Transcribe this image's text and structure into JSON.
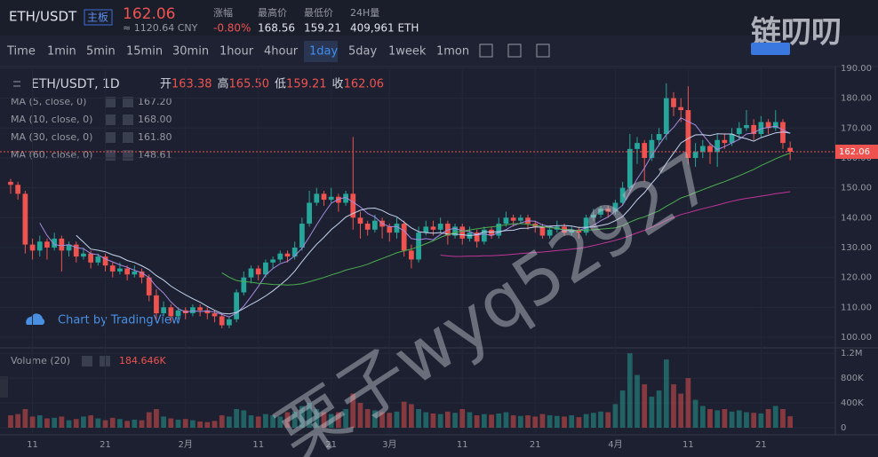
{
  "header": {
    "symbol": "ETH/USDT",
    "badge": "主板",
    "price": "162.06",
    "cny": "≈ 1120.64 CNY",
    "stats": [
      {
        "label": "涨幅",
        "value": "-0.80%"
      },
      {
        "label": "最高价",
        "value": "168.56"
      },
      {
        "label": "最低价",
        "value": "159.21"
      },
      {
        "label": "24H量",
        "value": "409,961 ETH"
      }
    ]
  },
  "logo": "链叨叨",
  "toolbar": [
    "Time",
    "1min",
    "5min",
    "15min",
    "30min",
    "1hour",
    "4hour",
    "1day",
    "5day",
    "1week",
    "1mon"
  ],
  "legend": {
    "title": "ETH/USDT, 1D",
    "ohlc": [
      {
        "label": "开",
        "value": "163.38"
      },
      {
        "label": "高",
        "value": "165.50"
      },
      {
        "label": "低",
        "value": "159.21"
      },
      {
        "label": "收",
        "value": "162.06"
      }
    ],
    "indicators": [
      {
        "name": "MA (5, close, 0)",
        "value": "167.20",
        "color": "#a58be0",
        "period": 5
      },
      {
        "name": "MA (10, close, 0)",
        "value": "168.00",
        "color": "#c6d4f0",
        "period": 10
      },
      {
        "name": "MA (30, close, 0)",
        "value": "161.80",
        "color": "#4caf50",
        "period": 30
      },
      {
        "name": "MA (60, close, 0)",
        "value": "148.61",
        "color": "#c2359a",
        "period": 60
      }
    ],
    "volume": "Volume (20)",
    "volume_value": "184.646K"
  },
  "branding": "Chart by TradingView",
  "watermark": "栗子wyq52927",
  "chart_data": {
    "type": "candlestick",
    "up_color": "#26a69a",
    "down_color": "#ef5350",
    "xlim": [
      -1.46,
      113.2
    ],
    "xticks": [
      {
        "value": 3,
        "label": "11"
      },
      {
        "value": 13,
        "label": "21"
      },
      {
        "value": 24,
        "label": "2月"
      },
      {
        "value": 34,
        "label": "11"
      },
      {
        "value": 44,
        "label": "21"
      },
      {
        "value": 52,
        "label": "3月"
      },
      {
        "value": 62,
        "label": "11"
      },
      {
        "value": 72,
        "label": "21"
      },
      {
        "value": 83,
        "label": "4月"
      },
      {
        "value": 93,
        "label": "11"
      },
      {
        "value": 103,
        "label": "21"
      }
    ],
    "ylim": [
      97.03,
      190.58
    ],
    "yticks": [
      {
        "value": 100,
        "label": "100.00"
      },
      {
        "value": 110,
        "label": "110.00"
      },
      {
        "value": 120,
        "label": "120.00"
      },
      {
        "value": 130,
        "label": "130.00"
      },
      {
        "value": 140,
        "label": "140.00"
      },
      {
        "value": 150,
        "label": "150.00"
      },
      {
        "value": 160,
        "label": "160.00"
      },
      {
        "value": 170,
        "label": "170.00"
      },
      {
        "value": 180,
        "label": "180.00"
      },
      {
        "value": 190,
        "label": "190.00"
      }
    ],
    "y2lim": [
      0,
      1230000
    ],
    "y2ticks": [
      0,
      {
        "value": 400000,
        "label": "400K"
      },
      {
        "value": 800000,
        "label": "800K"
      },
      {
        "value": 1200000,
        "label": "1.2M"
      }
    ],
    "candles": [
      [
        152,
        153,
        148,
        151
      ],
      [
        151,
        152,
        146,
        148
      ],
      [
        148,
        149,
        128,
        131
      ],
      [
        131,
        133,
        126,
        129
      ],
      [
        129,
        134,
        127,
        132
      ],
      [
        132,
        133,
        126,
        130
      ],
      [
        130,
        135,
        129,
        133
      ],
      [
        133,
        134,
        122,
        129
      ],
      [
        129,
        132,
        127,
        131
      ],
      [
        131,
        132,
        125,
        127
      ],
      [
        127,
        130,
        126,
        128
      ],
      [
        128,
        129,
        123,
        125
      ],
      [
        125,
        128,
        124,
        127
      ],
      [
        127,
        128,
        122,
        124
      ],
      [
        124,
        125,
        120,
        122
      ],
      [
        122,
        125,
        121,
        123
      ],
      [
        123,
        124,
        119,
        121
      ],
      [
        121,
        124,
        120,
        122
      ],
      [
        122,
        123,
        118,
        120
      ],
      [
        120,
        121,
        112,
        114
      ],
      [
        114,
        116,
        106,
        108
      ],
      [
        108,
        112,
        107,
        110
      ],
      [
        110,
        111,
        105,
        107
      ],
      [
        107,
        110,
        106,
        109
      ],
      [
        109,
        110,
        106,
        108
      ],
      [
        108,
        111,
        107,
        110
      ],
      [
        110,
        111,
        107,
        109
      ],
      [
        109,
        110,
        106,
        108
      ],
      [
        108,
        109,
        105,
        107
      ],
      [
        107,
        108,
        103,
        104
      ],
      [
        104,
        107,
        103,
        106
      ],
      [
        106,
        116,
        105,
        115
      ],
      [
        115,
        122,
        114,
        120
      ],
      [
        120,
        124,
        118,
        123
      ],
      [
        123,
        124,
        119,
        121
      ],
      [
        121,
        126,
        120,
        125
      ],
      [
        125,
        127,
        123,
        126
      ],
      [
        126,
        129,
        125,
        128
      ],
      [
        128,
        129,
        125,
        127
      ],
      [
        127,
        132,
        126,
        130
      ],
      [
        130,
        140,
        129,
        138
      ],
      [
        138,
        149,
        137,
        145
      ],
      [
        145,
        150,
        144,
        148
      ],
      [
        148,
        149,
        144,
        146
      ],
      [
        146,
        150,
        145,
        147
      ],
      [
        147,
        148,
        142,
        145
      ],
      [
        145,
        149,
        144,
        148
      ],
      [
        148,
        167,
        136,
        140
      ],
      [
        140,
        142,
        133,
        138
      ],
      [
        138,
        139,
        134,
        136
      ],
      [
        136,
        141,
        135,
        139
      ],
      [
        139,
        140,
        133,
        137
      ],
      [
        137,
        138,
        132,
        135
      ],
      [
        135,
        140,
        133,
        138
      ],
      [
        138,
        139,
        127,
        129
      ],
      [
        129,
        131,
        123,
        126
      ],
      [
        126,
        137,
        125,
        135
      ],
      [
        135,
        139,
        134,
        137
      ],
      [
        137,
        139,
        134,
        136
      ],
      [
        136,
        140,
        135,
        138
      ],
      [
        138,
        139,
        131,
        134
      ],
      [
        134,
        138,
        133,
        137
      ],
      [
        137,
        138,
        131,
        133
      ],
      [
        133,
        137,
        132,
        135
      ],
      [
        135,
        136,
        130,
        132
      ],
      [
        132,
        137,
        131,
        136
      ],
      [
        136,
        137,
        133,
        134
      ],
      [
        134,
        140,
        133,
        138
      ],
      [
        138,
        142,
        137,
        140
      ],
      [
        140,
        141,
        137,
        139
      ],
      [
        139,
        141,
        138,
        140
      ],
      [
        140,
        141,
        136,
        138
      ],
      [
        138,
        139,
        135,
        137
      ],
      [
        137,
        138,
        133,
        134
      ],
      [
        134,
        137,
        133,
        136
      ],
      [
        136,
        139,
        135,
        137
      ],
      [
        137,
        138,
        134,
        135
      ],
      [
        135,
        137,
        134,
        136
      ],
      [
        136,
        137,
        133,
        135
      ],
      [
        135,
        141,
        134,
        140
      ],
      [
        140,
        143,
        139,
        141
      ],
      [
        141,
        144,
        140,
        143
      ],
      [
        143,
        144,
        140,
        142
      ],
      [
        142,
        146,
        141,
        145
      ],
      [
        145,
        152,
        144,
        150
      ],
      [
        150,
        168,
        149,
        163
      ],
      [
        163,
        167,
        158,
        165
      ],
      [
        165,
        166,
        152,
        160
      ],
      [
        160,
        168,
        159,
        166
      ],
      [
        166,
        170,
        164,
        168
      ],
      [
        168,
        185,
        166,
        180
      ],
      [
        180,
        182,
        174,
        177
      ],
      [
        177,
        180,
        172,
        176
      ],
      [
        176,
        184,
        158,
        160
      ],
      [
        160,
        165,
        157,
        162
      ],
      [
        162,
        166,
        160,
        164
      ],
      [
        164,
        165,
        158,
        162
      ],
      [
        162,
        168,
        157,
        166
      ],
      [
        166,
        168,
        163,
        165
      ],
      [
        165,
        170,
        164,
        168
      ],
      [
        168,
        172,
        166,
        170
      ],
      [
        170,
        176,
        169,
        171
      ],
      [
        171,
        173,
        166,
        168
      ],
      [
        168,
        174,
        167,
        172
      ],
      [
        172,
        173,
        168,
        170
      ],
      [
        170,
        176,
        169,
        172
      ],
      [
        172,
        173,
        163,
        165
      ],
      [
        163.38,
        165.5,
        159.21,
        162.06
      ]
    ],
    "volumes": [
      200000,
      220000,
      300000,
      180000,
      200000,
      150000,
      160000,
      180000,
      120000,
      140000,
      180000,
      200000,
      150000,
      120000,
      160000,
      140000,
      110000,
      130000,
      120000,
      250000,
      300000,
      180000,
      150000,
      130000,
      140000,
      120000,
      100000,
      90000,
      110000,
      200000,
      180000,
      300000,
      280000,
      200000,
      180000,
      220000,
      200000,
      180000,
      250000,
      260000,
      350000,
      400000,
      300000,
      250000,
      220000,
      250000,
      300000,
      550000,
      400000,
      300000,
      280000,
      250000,
      240000,
      260000,
      420000,
      380000,
      300000,
      250000,
      230000,
      220000,
      260000,
      240000,
      300000,
      250000,
      200000,
      220000,
      210000,
      230000,
      250000,
      200000,
      190000,
      200000,
      180000,
      220000,
      200000,
      190000,
      180000,
      200000,
      170000,
      220000,
      240000,
      260000,
      250000,
      380000,
      600000,
      1200000,
      850000,
      700000,
      500000,
      600000,
      1100000,
      700000,
      550000,
      800000,
      450000,
      350000,
      300000,
      280000,
      300000,
      260000,
      280000,
      250000,
      240000,
      230000,
      300000,
      350000,
      300000,
      184646
    ]
  }
}
